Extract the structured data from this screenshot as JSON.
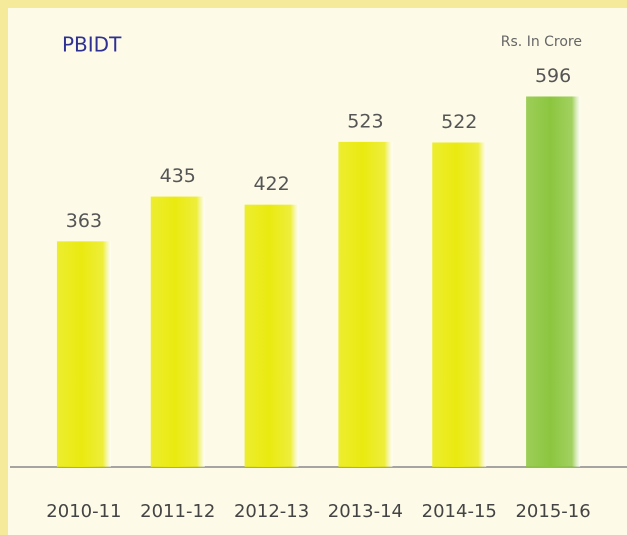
{
  "chart_data": {
    "type": "bar",
    "title": "PBIDT",
    "subtitle": "Rs. In Crore",
    "categories": [
      "2010-11",
      "2011-12",
      "2012-13",
      "2013-14",
      "2014-15",
      "2015-16"
    ],
    "values": [
      363,
      435,
      422,
      523,
      522,
      596
    ],
    "colors": [
      "#eaea10",
      "#eaea10",
      "#eaea10",
      "#eaea10",
      "#eaea10",
      "#8cc63f"
    ],
    "ylim": [
      0,
      600
    ]
  }
}
